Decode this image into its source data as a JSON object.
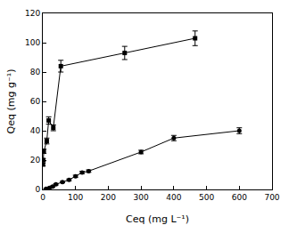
{
  "chart_data": {
    "type": "scatter",
    "x_label": "Ceq (mg L⁻¹)",
    "y_label": "Qeq (mg g⁻¹)",
    "xlim": [
      0,
      700
    ],
    "xticks": [
      0,
      100,
      200,
      300,
      400,
      500,
      600,
      700
    ],
    "ylim": [
      0,
      120
    ],
    "yticks": [
      0,
      20,
      40,
      60,
      80,
      100,
      120
    ],
    "grid": false,
    "series": [
      {
        "color": "#000000",
        "marker": "square",
        "line_style": "solid",
        "x": [
          0.5,
          1,
          3,
          12,
          18,
          32,
          55,
          250,
          465
        ],
        "values": [
          17,
          20,
          26,
          33,
          47,
          42,
          84,
          93,
          103
        ],
        "errors": [
          1,
          1,
          1.5,
          2,
          2.5,
          2,
          4,
          4.5,
          5
        ]
      },
      {
        "color": "#000000",
        "marker": "circle",
        "line_style": "solid",
        "x": [
          10,
          20,
          30,
          40,
          60,
          80,
          100,
          120,
          140,
          300,
          400,
          600
        ],
        "values": [
          0.5,
          1,
          2,
          3.5,
          5,
          6.5,
          9,
          11.5,
          12.5,
          25.5,
          35,
          40
        ],
        "errors": [
          0.3,
          0.3,
          0.4,
          0.5,
          0.5,
          0.6,
          0.7,
          0.8,
          0.8,
          1.2,
          1.8,
          2
        ]
      }
    ]
  }
}
